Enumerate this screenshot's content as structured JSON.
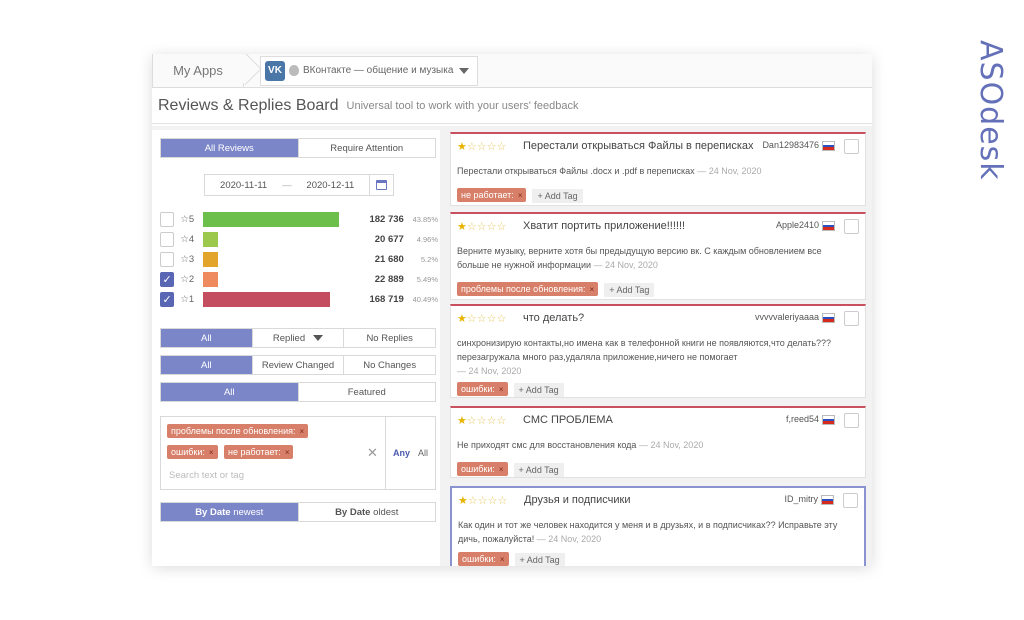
{
  "brand": "ASOdesk",
  "topbar": {
    "my_apps": "My Apps",
    "app_icon": "VK",
    "app_name": "ВКонтакте — общение и музыка"
  },
  "title": {
    "main": "Reviews & Replies Board",
    "subtitle": "Universal tool to work with your users' feedback"
  },
  "filters": {
    "review_tabs": [
      "All Reviews",
      "Require Attention"
    ],
    "date_from": "2020-11-11",
    "date_sep": "—",
    "date_to": "2020-12-11",
    "ratings": [
      {
        "label": "☆5",
        "count": "182 736",
        "pct": "43.85%",
        "fill": 0.9,
        "color": "#6cbf4a",
        "checked": false
      },
      {
        "label": "☆4",
        "count": "20 677",
        "pct": "4.96%",
        "fill": 0.1,
        "color": "#9cc84c",
        "checked": false
      },
      {
        "label": "☆3",
        "count": "21 680",
        "pct": "5.2%",
        "fill": 0.1,
        "color": "#e3a42b",
        "checked": false
      },
      {
        "label": "☆2",
        "count": "22 889",
        "pct": "5.49%",
        "fill": 0.1,
        "color": "#ef8a5e",
        "checked": true
      },
      {
        "label": "☆1",
        "count": "168 719",
        "pct": "40.49%",
        "fill": 0.84,
        "color": "#c44d60",
        "checked": true
      }
    ],
    "reply_seg": [
      "All",
      "Replied",
      "No Replies"
    ],
    "change_seg": [
      "All",
      "Review Changed",
      "No Changes"
    ],
    "featured_seg": [
      "All",
      "Featured"
    ],
    "tags": [
      "проблемы после обновления:",
      "ошибки:",
      "не работает:"
    ],
    "search_placeholder": "Search text or tag",
    "any_label": "Any",
    "all_label": "All",
    "sort": {
      "newest_bold": "By Date",
      "newest_rest": "newest",
      "oldest_bold": "By Date",
      "oldest_rest": "oldest"
    }
  },
  "reviews": [
    {
      "title": "Перестали открываться Файлы в переписках",
      "author": "Dan12983476",
      "text": "Перестали открываться Файлы .docx и .pdf в переписках",
      "date": "— 24 Nov, 2020",
      "tag": "не работает:",
      "add": "+ Add Tag"
    },
    {
      "title": "Хватит портить приложение!!!!!!",
      "author": "Apple2410",
      "text": "Верните музыку, верните хотя бы предыдущую версию вк. С каждым обновлением все больше не нужной информации",
      "date": "— 24 Nov, 2020",
      "tag": "проблемы после обновления:",
      "add": "+ Add Tag"
    },
    {
      "title": "что делать?",
      "author": "vvvvvaleriyaaaa",
      "text": "синхронизирую контакты,но имена как в телефонной книги не появляются,что делать???перезагружала много раз,удаляла приложение,ничего не помогает",
      "date": "— 24 Nov, 2020",
      "tag": "ошибки:",
      "add": "+ Add Tag"
    },
    {
      "title": "СМС ПРОБЛЕМА",
      "author": "f,reed54",
      "text": "Не приходят смс для восстановления кода",
      "date": "— 24 Nov, 2020",
      "tag": "ошибки:",
      "add": "+ Add Tag"
    },
    {
      "title": "Друзья и подписчики",
      "author": "ID_mitry",
      "text": "Как один и тот же человек находится у меня и в друзьях, и в подписчиках?? Исправьте эту дичь, пожалуйста!",
      "date": "— 24 Nov, 2020",
      "tag": "ошибки:",
      "add": "+ Add Tag"
    }
  ]
}
